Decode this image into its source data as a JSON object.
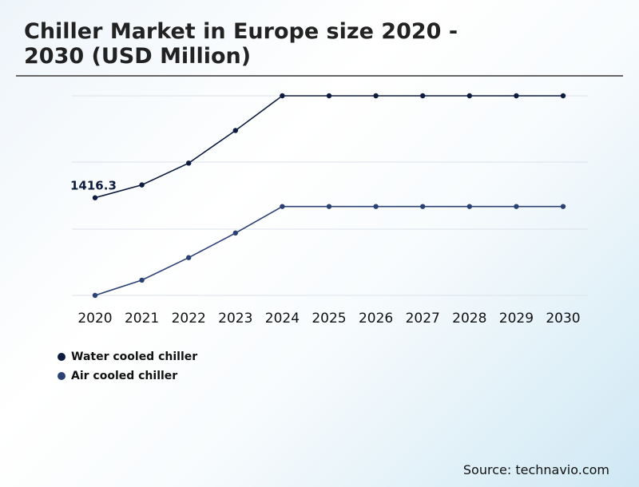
{
  "title_line1": "Chiller Market in Europe size 2020 -",
  "title_line2": "2030 (USD Million)",
  "source": "Source: technavio.com",
  "colors": {
    "water": "#0d1b3e",
    "air": "#2c4173",
    "grid": "#dde3ea"
  },
  "chart_data": {
    "type": "line",
    "categories": [
      "2020",
      "2021",
      "2022",
      "2023",
      "2024",
      "2025",
      "2026",
      "2027",
      "2028",
      "2029",
      "2030"
    ],
    "series": [
      {
        "name": "Water cooled chiller",
        "values": [
          1416.3,
          1471,
          1564,
          1703,
          1851,
          1851,
          1851,
          1851,
          1851,
          1851,
          1851
        ],
        "color": "#0d1b3e"
      },
      {
        "name": "Air cooled chiller",
        "values": [
          1000,
          1065,
          1161,
          1266,
          1379,
          1379,
          1379,
          1379,
          1379,
          1379,
          1379
        ],
        "color": "#2c4173"
      }
    ],
    "annotations": [
      {
        "series": 0,
        "index": 0,
        "text": "1416.3"
      }
    ],
    "ylim": [
      1000,
      1851
    ],
    "grid": true,
    "legend_position": "bottom-left"
  }
}
